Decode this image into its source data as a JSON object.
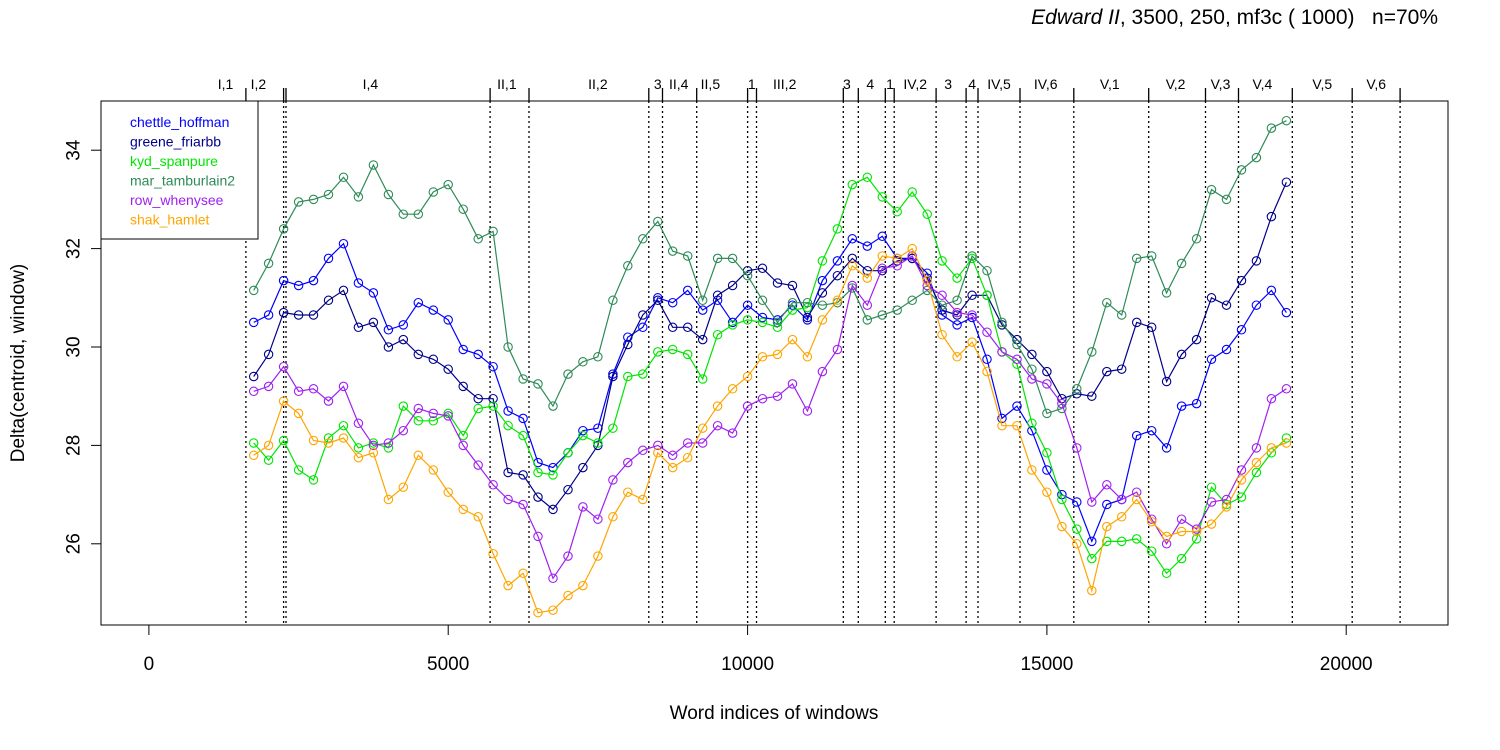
{
  "title": {
    "play": "Edward II",
    "params": ", 3500, 250, mf3c ( 1000)",
    "n": "n=70%"
  },
  "chart_data": {
    "type": "line",
    "xlabel": "Word indices of windows",
    "ylabel": "Delta(centroid, window)",
    "xlim": [
      -800,
      21700
    ],
    "ylim": [
      24.35,
      35.0
    ],
    "xticks": [
      0,
      5000,
      10000,
      15000,
      20000
    ],
    "xtick_labels": [
      "0",
      "5000",
      "10000",
      "15000",
      "20000"
    ],
    "yticks": [
      26,
      28,
      30,
      32,
      34
    ],
    "ytick_labels": [
      "26",
      "28",
      "30",
      "32",
      "34"
    ],
    "legend_position": "top-left",
    "scene_boundaries": [
      1620,
      2250,
      2290,
      5700,
      6350,
      8350,
      8580,
      9150,
      10000,
      10150,
      11600,
      11850,
      12300,
      12450,
      13150,
      13650,
      13850,
      14550,
      15450,
      16700,
      17650,
      18200,
      19100,
      20100,
      20900
    ],
    "scenes": [
      {
        "label": "I,1",
        "x": 1280
      },
      {
        "label": "I,2",
        "x": 1830
      },
      {
        "label": "I,4",
        "x": 3700
      },
      {
        "label": "II,1",
        "x": 5980
      },
      {
        "label": "II,2",
        "x": 7500
      },
      {
        "label": "3",
        "x": 8500
      },
      {
        "label": "II,4",
        "x": 8850
      },
      {
        "label": "II,5",
        "x": 9380
      },
      {
        "label": "1",
        "x": 10070
      },
      {
        "label": "III,2",
        "x": 10620
      },
      {
        "label": "3",
        "x": 11660
      },
      {
        "label": "4",
        "x": 12050
      },
      {
        "label": "1",
        "x": 12380
      },
      {
        "label": "IV,2",
        "x": 12800
      },
      {
        "label": "3",
        "x": 13350
      },
      {
        "label": "4",
        "x": 13750
      },
      {
        "label": "IV,5",
        "x": 14200
      },
      {
        "label": "IV,6",
        "x": 14980
      },
      {
        "label": "V,1",
        "x": 16050
      },
      {
        "label": "V,2",
        "x": 17150
      },
      {
        "label": "V,3",
        "x": 17900
      },
      {
        "label": "V,4",
        "x": 18600
      },
      {
        "label": "V,5",
        "x": 19600
      },
      {
        "label": "V,6",
        "x": 20500
      }
    ],
    "x": [
      1750,
      2000,
      2250,
      2500,
      2750,
      3000,
      3250,
      3500,
      3750,
      4000,
      4250,
      4500,
      4750,
      5000,
      5250,
      5500,
      5750,
      6000,
      6250,
      6500,
      6750,
      7000,
      7250,
      7500,
      7750,
      8000,
      8250,
      8500,
      8750,
      9000,
      9250,
      9500,
      9750,
      10000,
      10250,
      10500,
      10750,
      11000,
      11250,
      11500,
      11750,
      12000,
      12250,
      12500,
      12750,
      13000,
      13250,
      13500,
      13750,
      14000,
      14250,
      14500,
      14750,
      15000,
      15250,
      15500,
      15750,
      16000,
      16250,
      16500,
      16750,
      17000,
      17250,
      17500,
      17750,
      18000,
      18250,
      18500,
      18750,
      19000
    ],
    "series": [
      {
        "name": "chettle_hoffman",
        "color": "#0000ff",
        "values": [
          30.5,
          30.65,
          31.35,
          31.25,
          31.35,
          31.8,
          32.1,
          31.3,
          31.1,
          30.35,
          30.45,
          30.9,
          30.75,
          30.55,
          29.95,
          29.85,
          29.6,
          28.7,
          28.55,
          27.65,
          27.55,
          27.85,
          28.3,
          28.35,
          29.45,
          30.2,
          30.4,
          31.0,
          30.9,
          31.15,
          30.75,
          30.95,
          30.5,
          30.85,
          30.6,
          30.55,
          30.85,
          30.55,
          31.35,
          31.75,
          32.2,
          32.05,
          32.25,
          31.8,
          31.8,
          31.5,
          30.65,
          30.45,
          30.6,
          29.75,
          28.55,
          28.8,
          28.3,
          27.5,
          27.0,
          26.85,
          26.05,
          26.8,
          26.9,
          28.2,
          28.3,
          27.95,
          28.8,
          28.85,
          29.75,
          29.95,
          30.35,
          30.85,
          31.15,
          30.7
        ]
      },
      {
        "name": "greene_friarbb",
        "color": "#00008b",
        "values": [
          29.4,
          29.85,
          30.7,
          30.65,
          30.65,
          30.95,
          31.15,
          30.4,
          30.5,
          30.0,
          30.15,
          29.85,
          29.75,
          29.55,
          29.2,
          28.95,
          28.95,
          27.45,
          27.4,
          26.95,
          26.7,
          27.1,
          27.55,
          28.0,
          29.4,
          30.05,
          30.65,
          30.95,
          30.4,
          30.4,
          30.15,
          31.05,
          31.25,
          31.55,
          31.6,
          31.3,
          31.25,
          30.6,
          31.1,
          31.45,
          31.8,
          31.55,
          31.55,
          31.75,
          31.8,
          31.4,
          30.75,
          30.65,
          31.05,
          31.05,
          30.45,
          30.15,
          29.85,
          29.5,
          28.95,
          29.05,
          29.0,
          29.5,
          29.55,
          30.5,
          30.4,
          29.3,
          29.85,
          30.15,
          31.0,
          30.85,
          31.35,
          31.75,
          32.65,
          33.35
        ]
      },
      {
        "name": "kyd_spanpure",
        "color": "#00e600",
        "values": [
          28.05,
          27.7,
          28.1,
          27.5,
          27.3,
          28.15,
          28.4,
          27.95,
          28.05,
          27.95,
          28.8,
          28.5,
          28.5,
          28.65,
          28.2,
          28.75,
          28.8,
          28.4,
          28.2,
          27.45,
          27.4,
          27.85,
          28.2,
          28.05,
          28.35,
          29.4,
          29.45,
          29.9,
          29.95,
          29.85,
          29.35,
          30.25,
          30.45,
          30.55,
          30.5,
          30.4,
          30.75,
          30.8,
          31.75,
          32.4,
          33.3,
          33.45,
          33.05,
          32.75,
          33.15,
          32.7,
          31.75,
          31.4,
          31.8,
          31.05,
          29.9,
          29.65,
          28.45,
          27.85,
          26.9,
          26.3,
          25.7,
          26.05,
          26.05,
          26.1,
          25.85,
          25.4,
          25.7,
          26.1,
          27.15,
          26.8,
          26.95,
          27.45,
          27.85,
          28.15
        ]
      },
      {
        "name": "mar_tamburlain2",
        "color": "#2e8b57",
        "values": [
          31.15,
          31.7,
          32.4,
          32.95,
          33.0,
          33.1,
          33.45,
          33.05,
          33.7,
          33.1,
          32.7,
          32.7,
          33.15,
          33.3,
          32.8,
          32.2,
          32.35,
          30.0,
          29.35,
          29.25,
          28.8,
          29.45,
          29.7,
          29.8,
          30.95,
          31.65,
          32.2,
          32.55,
          31.95,
          31.85,
          30.95,
          31.8,
          31.8,
          31.45,
          30.95,
          30.5,
          30.9,
          30.9,
          30.85,
          30.9,
          31.2,
          30.55,
          30.65,
          30.75,
          30.95,
          31.15,
          30.85,
          30.95,
          31.85,
          31.55,
          30.5,
          30.05,
          29.55,
          28.65,
          28.75,
          29.15,
          29.9,
          30.9,
          30.65,
          31.8,
          31.85,
          31.1,
          31.7,
          32.2,
          33.2,
          33.0,
          33.6,
          33.85,
          34.45,
          34.6
        ]
      },
      {
        "name": "row_whenysee",
        "color": "#a020f0",
        "values": [
          29.1,
          29.2,
          29.6,
          29.1,
          29.15,
          28.9,
          29.2,
          28.45,
          28.0,
          28.05,
          28.3,
          28.75,
          28.65,
          28.6,
          28.0,
          27.6,
          27.2,
          26.9,
          26.8,
          26.15,
          25.3,
          25.75,
          26.75,
          26.5,
          27.3,
          27.65,
          27.9,
          28.0,
          27.8,
          28.05,
          28.05,
          28.4,
          28.25,
          28.8,
          28.95,
          29.0,
          29.25,
          28.7,
          29.5,
          29.95,
          31.25,
          30.85,
          31.6,
          31.65,
          31.85,
          31.25,
          31.05,
          30.7,
          30.65,
          30.3,
          29.9,
          29.75,
          29.35,
          29.25,
          28.85,
          27.95,
          26.85,
          27.2,
          26.9,
          27.05,
          26.5,
          26.0,
          26.5,
          26.3,
          26.85,
          26.9,
          27.5,
          27.95,
          28.95,
          29.15
        ]
      },
      {
        "name": "shak_hamlet",
        "color": "#ffa500",
        "values": [
          27.8,
          28.0,
          28.9,
          28.65,
          28.1,
          28.05,
          28.15,
          27.75,
          27.85,
          26.9,
          27.15,
          27.8,
          27.5,
          27.05,
          26.7,
          26.55,
          25.8,
          25.15,
          25.4,
          24.6,
          24.65,
          24.95,
          25.15,
          25.75,
          26.55,
          27.05,
          26.9,
          27.85,
          27.55,
          27.75,
          28.35,
          28.8,
          29.15,
          29.4,
          29.8,
          29.85,
          30.15,
          29.8,
          30.55,
          30.95,
          31.65,
          31.4,
          31.85,
          31.8,
          32.0,
          31.35,
          30.25,
          29.8,
          30.1,
          29.5,
          28.4,
          28.4,
          27.5,
          27.05,
          26.35,
          26.0,
          25.05,
          26.35,
          26.55,
          26.9,
          26.45,
          26.15,
          26.25,
          26.25,
          26.4,
          26.75,
          27.3,
          27.65,
          27.95,
          28.05
        ]
      }
    ]
  }
}
